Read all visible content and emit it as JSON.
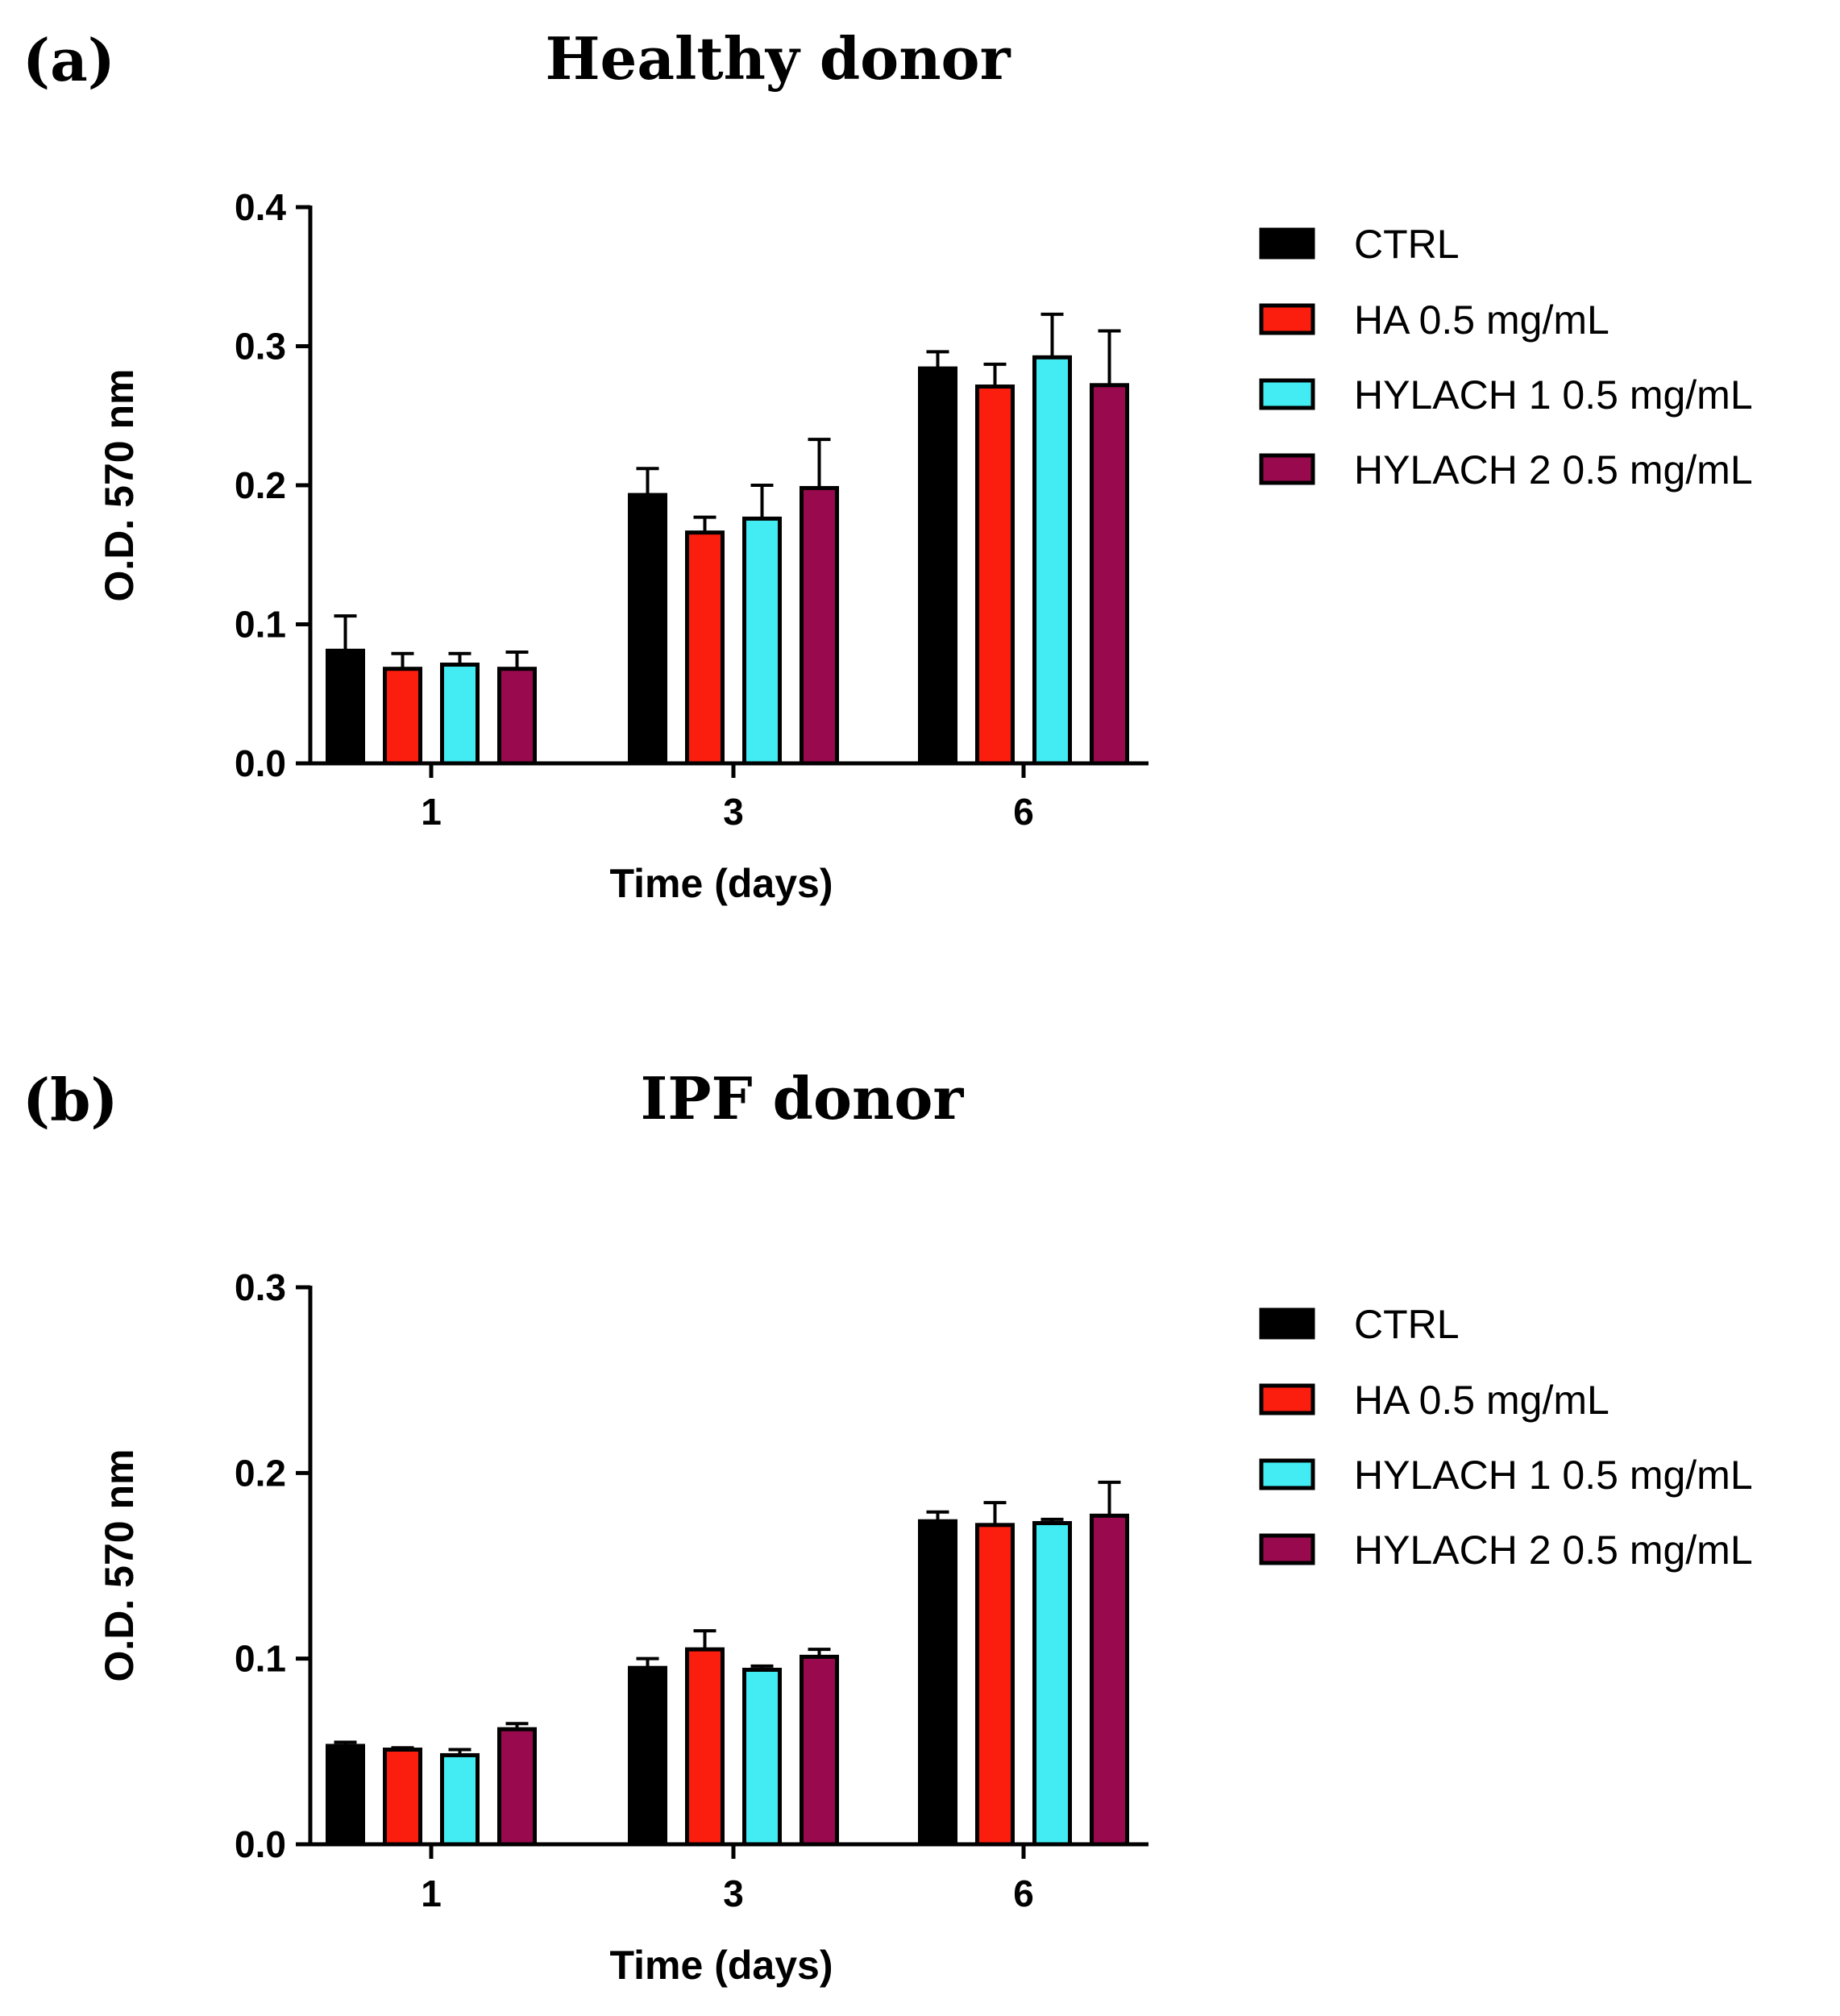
{
  "series_style": [
    {
      "name": "CTRL",
      "color": "#000000"
    },
    {
      "name": "HA 0.5 mg/mL",
      "color": "#fb1d0e"
    },
    {
      "name": "HYLACH 1 0.5 mg/mL",
      "color": "#43ecf2"
    },
    {
      "name": "HYLACH 2 0.5 mg/mL",
      "color": "#980a4d"
    }
  ],
  "chart_data": [
    {
      "type": "bar",
      "panel_label": "(a)",
      "title": "Healthy donor",
      "xlabel": "Time (days)",
      "ylabel": "O.D. 570 nm",
      "categories": [
        "1",
        "3",
        "6"
      ],
      "ylim": [
        0,
        0.4
      ],
      "yticks": [
        0.0,
        0.1,
        0.2,
        0.3,
        0.4
      ],
      "ytick_labels": [
        "0.0",
        "0.1",
        "0.2",
        "0.3",
        "0.4"
      ],
      "legend_position": "right",
      "series": [
        {
          "name": "CTRL",
          "values": [
            0.081,
            0.193,
            0.284
          ],
          "errors": [
            0.025,
            0.019,
            0.012
          ]
        },
        {
          "name": "HA 0.5 mg/mL",
          "values": [
            0.068,
            0.166,
            0.271
          ],
          "errors": [
            0.011,
            0.011,
            0.016
          ]
        },
        {
          "name": "HYLACH 1 0.5 mg/mL",
          "values": [
            0.071,
            0.176,
            0.292
          ],
          "errors": [
            0.008,
            0.024,
            0.031
          ]
        },
        {
          "name": "HYLACH 2 0.5 mg/mL",
          "values": [
            0.068,
            0.198,
            0.272
          ],
          "errors": [
            0.012,
            0.035,
            0.039
          ]
        }
      ]
    },
    {
      "type": "bar",
      "panel_label": "(b)",
      "title": "IPF donor",
      "xlabel": "Time (days)",
      "ylabel": "O.D. 570 nm",
      "categories": [
        "1",
        "3",
        "6"
      ],
      "ylim": [
        0,
        0.3
      ],
      "yticks": [
        0.0,
        0.1,
        0.2,
        0.3
      ],
      "ytick_labels": [
        "0.0",
        "0.1",
        "0.2",
        "0.3"
      ],
      "legend_position": "right",
      "series": [
        {
          "name": "CTRL",
          "values": [
            0.053,
            0.095,
            0.174
          ],
          "errors": [
            0.002,
            0.005,
            0.005
          ]
        },
        {
          "name": "HA 0.5 mg/mL",
          "values": [
            0.051,
            0.105,
            0.172
          ],
          "errors": [
            0.001,
            0.01,
            0.012
          ]
        },
        {
          "name": "HYLACH 1 0.5 mg/mL",
          "values": [
            0.048,
            0.094,
            0.173
          ],
          "errors": [
            0.003,
            0.002,
            0.002
          ]
        },
        {
          "name": "HYLACH 2 0.5 mg/mL",
          "values": [
            0.062,
            0.101,
            0.177
          ],
          "errors": [
            0.003,
            0.004,
            0.018
          ]
        }
      ]
    }
  ]
}
